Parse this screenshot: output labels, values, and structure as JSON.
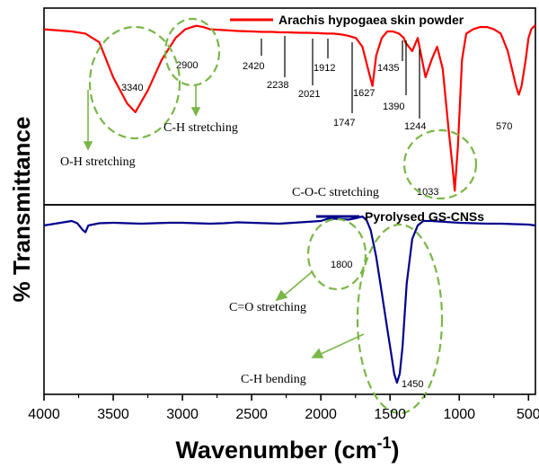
{
  "chart_data": {
    "type": "line",
    "xlabel": "Wavenumber (cm",
    "xlabel_sup": "-1",
    "xlabel_close": ")",
    "ylabel": "% Transmittance",
    "xlim": [
      4000,
      450
    ],
    "x_ticks": [
      "4000",
      "3500",
      "3000",
      "2500",
      "2000",
      "1500",
      "1000",
      "500"
    ],
    "x_tick_values": [
      4000,
      3500,
      3000,
      2500,
      2000,
      1500,
      1000,
      500
    ],
    "series": [
      {
        "name": "Arachis hypogaea skin powder",
        "color": "#ff0000",
        "panel": "top",
        "x": [
          4000,
          3800,
          3700,
          3650,
          3600,
          3500,
          3400,
          3340,
          3250,
          3150,
          3050,
          2980,
          2930,
          2900,
          2850,
          2800,
          2700,
          2600,
          2500,
          2420,
          2350,
          2300,
          2238,
          2150,
          2100,
          2021,
          1960,
          1912,
          1850,
          1800,
          1747,
          1700,
          1660,
          1627,
          1600,
          1560,
          1520,
          1480,
          1435,
          1400,
          1390,
          1340,
          1300,
          1244,
          1200,
          1160,
          1120,
          1080,
          1050,
          1033,
          1010,
          980,
          950,
          900,
          850,
          800,
          750,
          700,
          650,
          620,
          590,
          570,
          550,
          520,
          500,
          480,
          450
        ],
        "y": [
          97,
          96.5,
          96,
          95,
          94,
          86,
          80,
          78,
          83,
          90,
          95,
          97,
          97.5,
          97.8,
          97.5,
          97,
          96.8,
          96.6,
          96.5,
          96.4,
          96.4,
          96.3,
          96.3,
          96.2,
          96.2,
          96.1,
          96,
          96,
          95.8,
          95.5,
          95,
          93,
          88,
          84,
          91,
          95,
          96.5,
          96.5,
          96,
          95,
          94,
          92,
          95,
          86,
          90,
          93,
          88,
          75,
          66,
          60,
          70,
          90,
          96,
          97,
          97.5,
          97.5,
          97,
          96,
          92,
          88,
          84,
          82,
          84,
          90,
          95,
          97,
          98
        ]
      },
      {
        "name": "Pyrolysed GS-CNSs",
        "color": "#00008b",
        "panel": "bottom",
        "x": [
          4000,
          3900,
          3800,
          3760,
          3720,
          3700,
          3680,
          3600,
          3500,
          3400,
          3300,
          3200,
          3100,
          3000,
          2900,
          2800,
          2700,
          2600,
          2500,
          2400,
          2300,
          2200,
          2100,
          2000,
          1950,
          1900,
          1850,
          1800,
          1750,
          1700,
          1670,
          1640,
          1600,
          1560,
          1520,
          1490,
          1470,
          1450,
          1430,
          1410,
          1380,
          1340,
          1300,
          1260,
          1200,
          1100,
          1000,
          900,
          800,
          700,
          600,
          500,
          450
        ],
        "y": [
          97,
          97.5,
          98,
          97.5,
          96,
          95.5,
          97,
          97.5,
          97.6,
          97.5,
          97.4,
          97.5,
          97.6,
          97.6,
          97.5,
          97.4,
          97.5,
          97.7,
          97.6,
          97.5,
          97.4,
          97.6,
          97.8,
          98,
          98.5,
          98.5,
          98.4,
          98.3,
          98.6,
          99,
          98.2,
          96,
          90,
          82,
          74,
          68,
          64,
          62,
          64,
          70,
          84,
          94,
          97,
          98,
          98,
          97.8,
          97.6,
          97.5,
          97.4,
          97.4,
          97.3,
          97.2,
          97
        ]
      }
    ],
    "peak_labels_top": [
      {
        "text": "3340",
        "x": 3340
      },
      {
        "text": "2900",
        "x": 2900
      },
      {
        "text": "2420",
        "x": 2420
      },
      {
        "text": "2238",
        "x": 2238
      },
      {
        "text": "2021",
        "x": 2021
      },
      {
        "text": "1912",
        "x": 1912
      },
      {
        "text": "1747",
        "x": 1747
      },
      {
        "text": "1627",
        "x": 1627
      },
      {
        "text": "1435",
        "x": 1435
      },
      {
        "text": "1390",
        "x": 1390
      },
      {
        "text": "1244",
        "x": 1244
      },
      {
        "text": "1033",
        "x": 1033
      },
      {
        "text": "570",
        "x": 570
      }
    ],
    "peak_labels_bottom": [
      {
        "text": "1800",
        "x": 1800
      },
      {
        "text": "1450",
        "x": 1450
      }
    ],
    "annotations": [
      {
        "text": "O-H stretching"
      },
      {
        "text": "C-H stretching"
      },
      {
        "text": "C-O-C stretching"
      },
      {
        "text": "C=O stretching"
      },
      {
        "text": "C-H bending"
      }
    ],
    "legend_placement": "top-right",
    "grid": false
  },
  "colors": {
    "ellipse": "#7ab648",
    "frame": "#000000"
  }
}
